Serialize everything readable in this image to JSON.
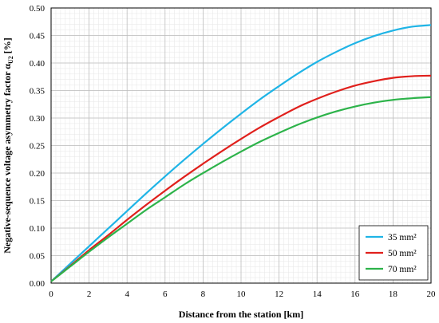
{
  "chart_data": {
    "type": "line",
    "title": "",
    "xlabel": "Distance from the station [km]",
    "ylabel": "Negative-sequence voltage asymmetry factor α",
    "ylabel_sub": "U2",
    "ylabel_unit": " [%]",
    "xlim": [
      0,
      20
    ],
    "ylim": [
      0,
      0.5
    ],
    "x_ticks": [
      0,
      2,
      4,
      6,
      8,
      10,
      12,
      14,
      16,
      18,
      20
    ],
    "x_tick_labels": [
      "0",
      "2",
      "4",
      "6",
      "8",
      "10",
      "12",
      "14",
      "16",
      "18",
      "20"
    ],
    "y_ticks": [
      0,
      0.05,
      0.1,
      0.15,
      0.2,
      0.25,
      0.3,
      0.35,
      0.4,
      0.45,
      0.5
    ],
    "y_tick_labels": [
      "0.00",
      "0.05",
      "0.10",
      "0.15",
      "0.20",
      "0.25",
      "0.30",
      "0.35",
      "0.40",
      "0.45",
      "0.50"
    ],
    "grid": true,
    "minor_grid": true,
    "legend_position": "bottom-right",
    "x": [
      0,
      1,
      2,
      3,
      4,
      5,
      6,
      7,
      8,
      9,
      10,
      11,
      12,
      13,
      14,
      15,
      16,
      17,
      18,
      19,
      20
    ],
    "series": [
      {
        "name": "35 mm²",
        "color": "#1fb4e6",
        "values": [
          0.003,
          0.035,
          0.067,
          0.099,
          0.131,
          0.163,
          0.194,
          0.224,
          0.253,
          0.281,
          0.308,
          0.334,
          0.358,
          0.381,
          0.402,
          0.42,
          0.436,
          0.449,
          0.459,
          0.466,
          0.469
        ]
      },
      {
        "name": "50 mm²",
        "color": "#e0201c",
        "values": [
          0.003,
          0.031,
          0.06,
          0.087,
          0.115,
          0.142,
          0.168,
          0.193,
          0.217,
          0.24,
          0.262,
          0.283,
          0.302,
          0.32,
          0.335,
          0.348,
          0.359,
          0.367,
          0.373,
          0.376,
          0.377
        ]
      },
      {
        "name": "70 mm²",
        "color": "#2db34a",
        "values": [
          0.003,
          0.03,
          0.057,
          0.083,
          0.108,
          0.133,
          0.156,
          0.179,
          0.2,
          0.22,
          0.239,
          0.257,
          0.273,
          0.288,
          0.301,
          0.312,
          0.321,
          0.328,
          0.333,
          0.336,
          0.338
        ]
      }
    ]
  }
}
